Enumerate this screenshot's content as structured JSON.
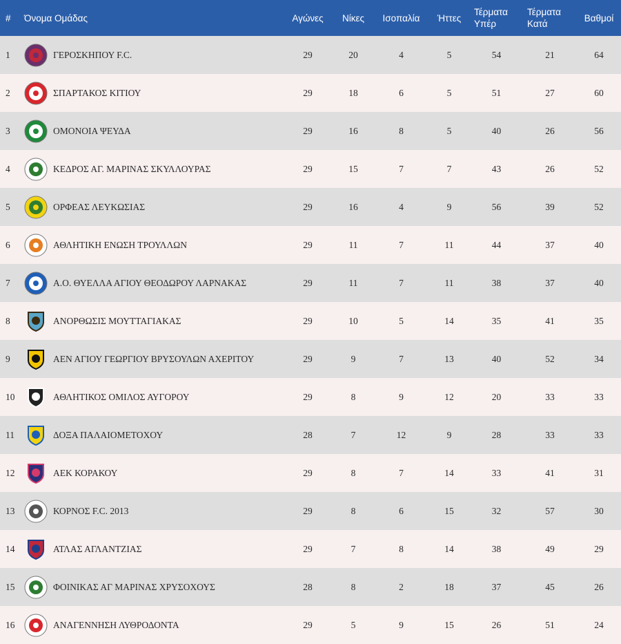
{
  "header": {
    "rank": "#",
    "team": "Όνομα Ομάδας",
    "played": "Αγώνες",
    "wins": "Νίκες",
    "draws": "Ισοπαλία",
    "losses": "Ήττες",
    "goals_for_1": "Τέρματα",
    "goals_for_2": "Υπέρ",
    "goals_against_1": "Τέρματα",
    "goals_against_2": "Κατά",
    "points": "Βαθμοί"
  },
  "rows": [
    {
      "rank": "1",
      "team": "ΓΕΡΟΣΚΗΠΟΥ F.C.",
      "played": "29",
      "wins": "20",
      "draws": "4",
      "losses": "5",
      "gf": "54",
      "ga": "21",
      "pts": "64",
      "logo": "geroskipou-crest-icon",
      "c1": "#6b2f6b",
      "c2": "#c0283b",
      "shape": "circle"
    },
    {
      "rank": "2",
      "team": "ΣΠΑΡΤΑΚΟΣ ΚΙΤΙΟΥ",
      "played": "29",
      "wins": "18",
      "draws": "6",
      "losses": "5",
      "gf": "51",
      "ga": "27",
      "pts": "60",
      "logo": "spartakos-crest-icon",
      "c1": "#d9262c",
      "c2": "#ffffff",
      "shape": "circle"
    },
    {
      "rank": "3",
      "team": "ΟΜΟΝΟΙΑ ΨΕΥΔΑ",
      "played": "29",
      "wins": "16",
      "draws": "8",
      "losses": "5",
      "gf": "40",
      "ga": "26",
      "pts": "56",
      "logo": "omonoia-clover-icon",
      "c1": "#1e8a3a",
      "c2": "#ffffff",
      "shape": "circle"
    },
    {
      "rank": "4",
      "team": "ΚΕΔΡΟΣ ΑΓ. ΜΑΡΙΝΑΣ ΣΚΥΛΛΟΥΡΑΣ",
      "played": "29",
      "wins": "15",
      "draws": "7",
      "losses": "7",
      "gf": "43",
      "ga": "26",
      "pts": "52",
      "logo": "kedros-cedar-icon",
      "c1": "#ffffff",
      "c2": "#2e7d32",
      "shape": "circle"
    },
    {
      "rank": "5",
      "team": "ΟΡΦΕΑΣ ΛΕΥΚΩΣΙΑΣ",
      "played": "29",
      "wins": "16",
      "draws": "4",
      "losses": "9",
      "gf": "56",
      "ga": "39",
      "pts": "52",
      "logo": "orfeas-crest-icon",
      "c1": "#f2d30f",
      "c2": "#2e7d32",
      "shape": "circle"
    },
    {
      "rank": "6",
      "team": "ΑΘΛΗΤΙΚΗ ΕΝΩΣΗ ΤΡΟΥΛΛΩΝ",
      "played": "29",
      "wins": "11",
      "draws": "7",
      "losses": "11",
      "gf": "44",
      "ga": "37",
      "pts": "40",
      "logo": "troullon-crest-icon",
      "c1": "#ffffff",
      "c2": "#e67e22",
      "shape": "circle"
    },
    {
      "rank": "7",
      "team": "Α.Ο. ΘΥΕΛΛΑ ΑΓΙΟΥ ΘΕΟΔΩΡΟΥ ΛΑΡΝΑΚΑΣ",
      "played": "29",
      "wins": "11",
      "draws": "7",
      "losses": "11",
      "gf": "38",
      "ga": "37",
      "pts": "40",
      "logo": "thyella-crest-icon",
      "c1": "#1f5fb8",
      "c2": "#ffffff",
      "shape": "circle"
    },
    {
      "rank": "8",
      "team": "ΑΝΟΡΘΩΣΙΣ ΜΟΥΤΤΑΓΙΑΚΑΣ",
      "played": "29",
      "wins": "10",
      "draws": "5",
      "losses": "14",
      "gf": "35",
      "ga": "41",
      "pts": "35",
      "logo": "anorthosis-eagle-icon",
      "c1": "#5aa6c8",
      "c2": "#3a2a10",
      "shape": "shield"
    },
    {
      "rank": "9",
      "team": "ΑΕΝ ΑΓΙΟΥ ΓΕΩΡΓΙΟΥ ΒΡΥΣΟΥΛΩΝ ΑΧΕΡΙΤΟΥ",
      "played": "29",
      "wins": "9",
      "draws": "7",
      "losses": "13",
      "gf": "40",
      "ga": "52",
      "pts": "34",
      "logo": "aen-crest-icon",
      "c1": "#f2c500",
      "c2": "#111111",
      "shape": "shield"
    },
    {
      "rank": "10",
      "team": "ΑΘΛΗΤΙΚΟΣ ΟΜΙΛΟΣ ΑΥΓΟΡΟΥ",
      "played": "29",
      "wins": "8",
      "draws": "9",
      "losses": "12",
      "gf": "20",
      "ga": "33",
      "pts": "33",
      "logo": "avgorou-crest-icon",
      "c1": "#222222",
      "c2": "#ffffff",
      "shape": "shield"
    },
    {
      "rank": "11",
      "team": "ΔΟΞΑ ΠΑΛΑΙΟΜΕΤΟΧΟΥ",
      "played": "28",
      "wins": "7",
      "draws": "12",
      "losses": "9",
      "gf": "28",
      "ga": "33",
      "pts": "33",
      "logo": "doxa-crest-icon",
      "c1": "#f2d30f",
      "c2": "#1f5fb8",
      "shape": "shield"
    },
    {
      "rank": "12",
      "team": "ΑΕΚ ΚΟΡΑΚΟΥ",
      "played": "29",
      "wins": "8",
      "draws": "7",
      "losses": "14",
      "gf": "33",
      "ga": "41",
      "pts": "31",
      "logo": "aek-korakou-crest-icon",
      "c1": "#2a2f7a",
      "c2": "#d63a6a",
      "shape": "shield"
    },
    {
      "rank": "13",
      "team": "ΚΟΡΝΟΣ F.C. 2013",
      "played": "29",
      "wins": "8",
      "draws": "6",
      "losses": "15",
      "gf": "32",
      "ga": "57",
      "pts": "30",
      "logo": "kornos-crest-icon",
      "c1": "#ffffff",
      "c2": "#555555",
      "shape": "circle"
    },
    {
      "rank": "14",
      "team": "ΑΤΛΑΣ ΑΓΛΑΝΤΖΙΑΣ",
      "played": "29",
      "wins": "7",
      "draws": "8",
      "losses": "14",
      "gf": "38",
      "ga": "49",
      "pts": "29",
      "logo": "atlas-crest-icon",
      "c1": "#c0283b",
      "c2": "#1f3f8a",
      "shape": "shield"
    },
    {
      "rank": "15",
      "team": "ΦΟΙΝΙΚΑΣ ΑΓ ΜΑΡΙΝΑΣ ΧΡΥΣΟΧΟΥΣ",
      "played": "28",
      "wins": "8",
      "draws": "2",
      "losses": "18",
      "gf": "37",
      "ga": "45",
      "pts": "26",
      "logo": "foinikas-palm-icon",
      "c1": "#ffffff",
      "c2": "#2e7d32",
      "shape": "circle"
    },
    {
      "rank": "16",
      "team": "ΑΝΑΓΕΝΝΗΣΗ ΛΥΘΡΟΔΟΝΤΑ",
      "played": "29",
      "wins": "5",
      "draws": "9",
      "losses": "15",
      "gf": "26",
      "ga": "51",
      "pts": "24",
      "logo": "anagennisi-crest-icon",
      "c1": "#ffffff",
      "c2": "#d9262c",
      "shape": "circle"
    }
  ]
}
